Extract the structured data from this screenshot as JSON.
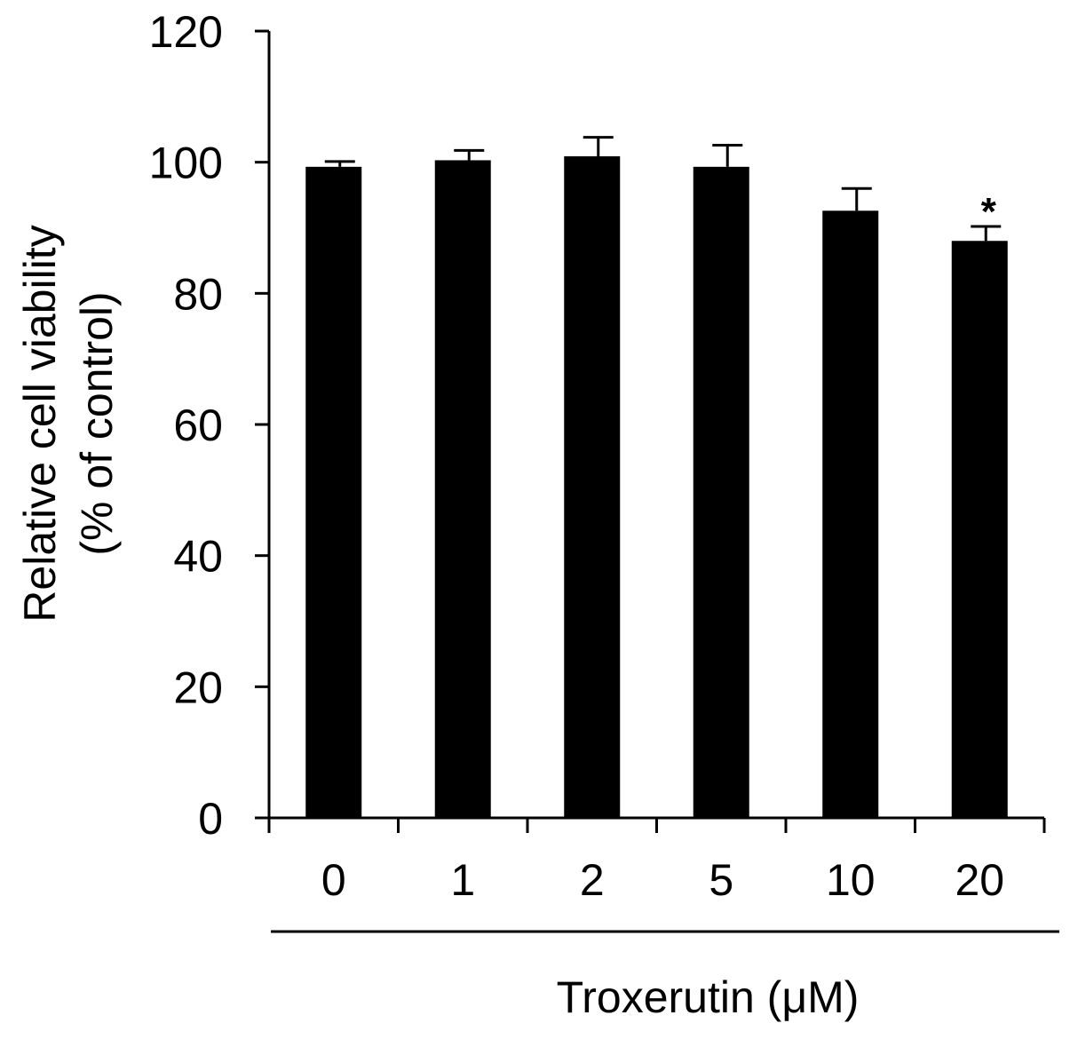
{
  "chart_data": {
    "type": "bar",
    "title": "",
    "ylabel_line1": "Relative cell viability",
    "ylabel_line2": "(% of control)",
    "xlabel": "Troxerutin (μM)",
    "categories": [
      "0",
      "1",
      "2",
      "5",
      "10",
      "20"
    ],
    "values": [
      99.3,
      100.3,
      100.9,
      99.3,
      92.6,
      88.0
    ],
    "errors": [
      0.8,
      1.5,
      2.9,
      3.3,
      3.4,
      2.2
    ],
    "annotations": [
      "",
      "",
      "",
      "",
      "",
      "*"
    ],
    "ylim": [
      0,
      120
    ],
    "yticks": [
      0,
      20,
      40,
      60,
      80,
      100,
      120
    ],
    "grid": false,
    "legend": "none",
    "bar_color": "#000000",
    "axis_color": "#000000"
  }
}
